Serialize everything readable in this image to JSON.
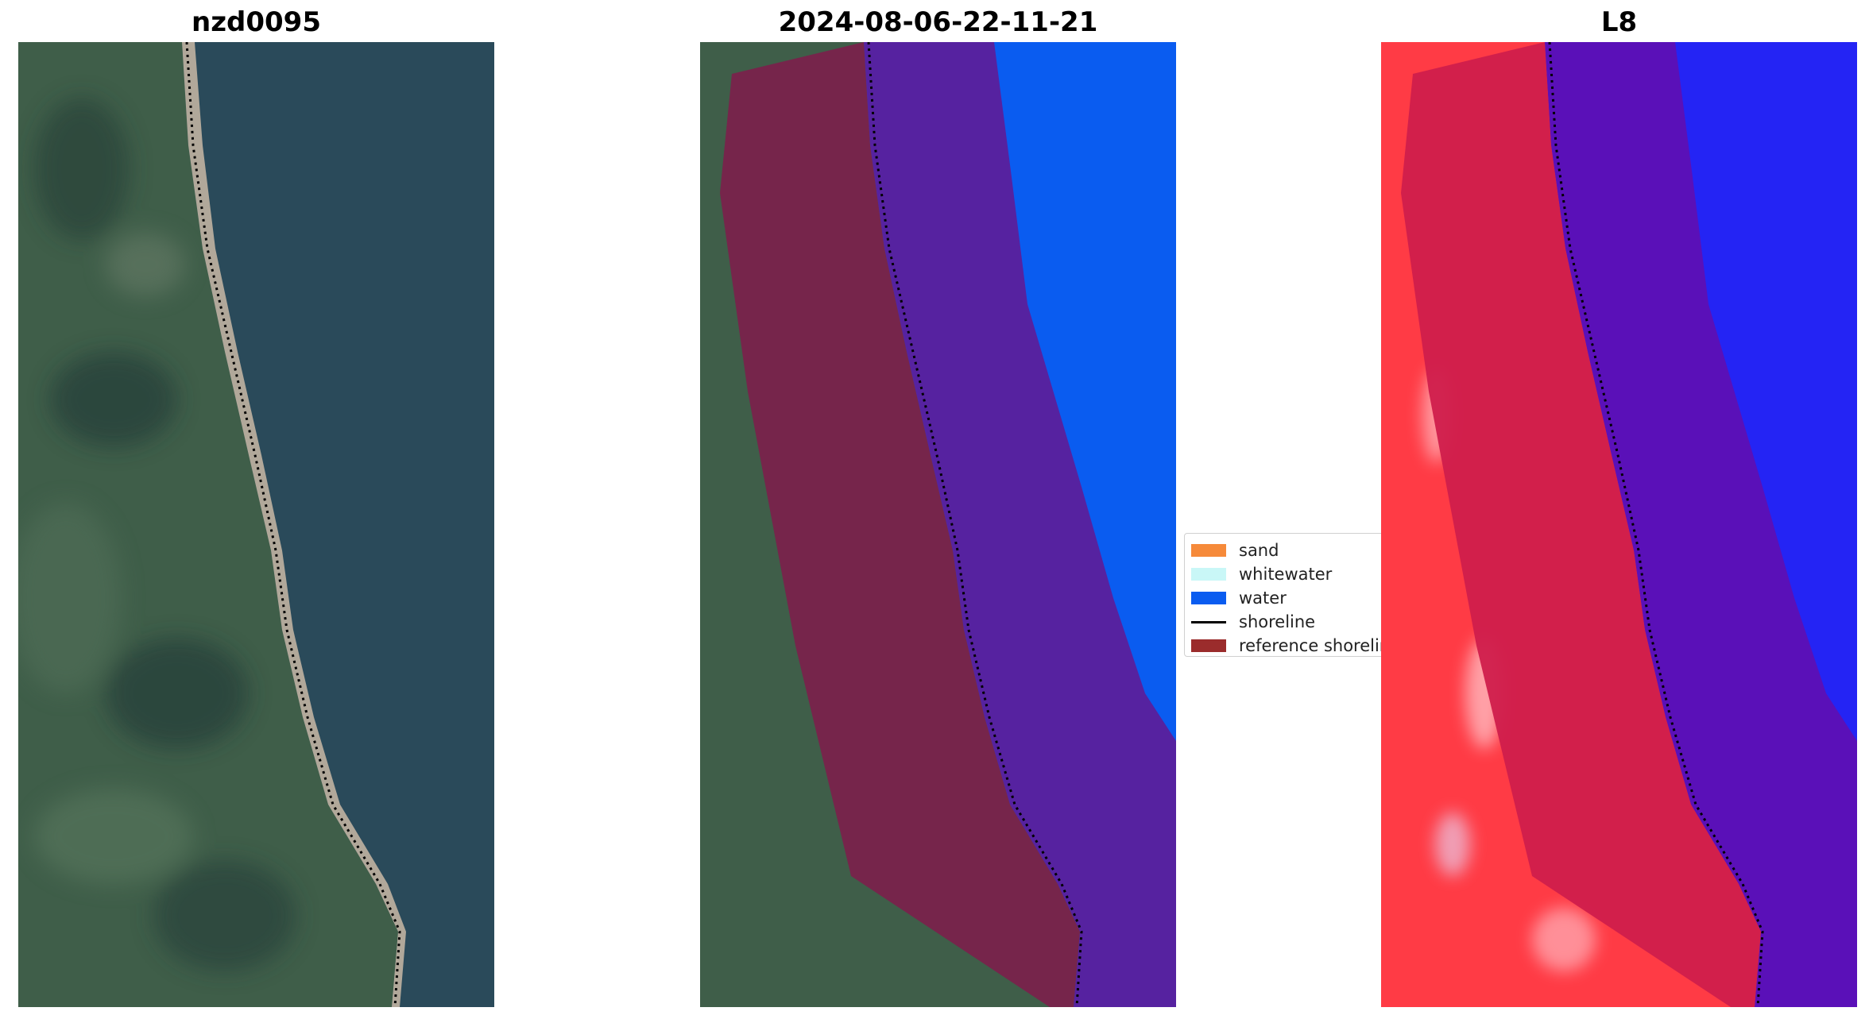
{
  "titles": {
    "site": "nzd0095",
    "date": "2024-08-06-22-11-21",
    "satellite": "L8"
  },
  "legend": {
    "items": [
      {
        "label": "sand",
        "color": "#f68a3a"
      },
      {
        "label": "whitewater",
        "color": "#c9f7f7"
      },
      {
        "label": "water",
        "color": "#0a5cf0"
      },
      {
        "label": "shoreline",
        "color": "#000000"
      },
      {
        "label": "reference shoreline",
        "color": "#9b2c2c"
      }
    ]
  },
  "colors": {
    "land": "#3f5e49",
    "sea": "#2a4a5a",
    "water_class": "#0a5cf0",
    "buffer": "#7c1f4b",
    "buffer_water": "#5622a0",
    "index_land": "#ff3b45",
    "index_buffer_land": "#d01d4c",
    "index_water": "#2424f4",
    "index_buffer_water": "#5a10b8",
    "shoreline": "#000000"
  }
}
